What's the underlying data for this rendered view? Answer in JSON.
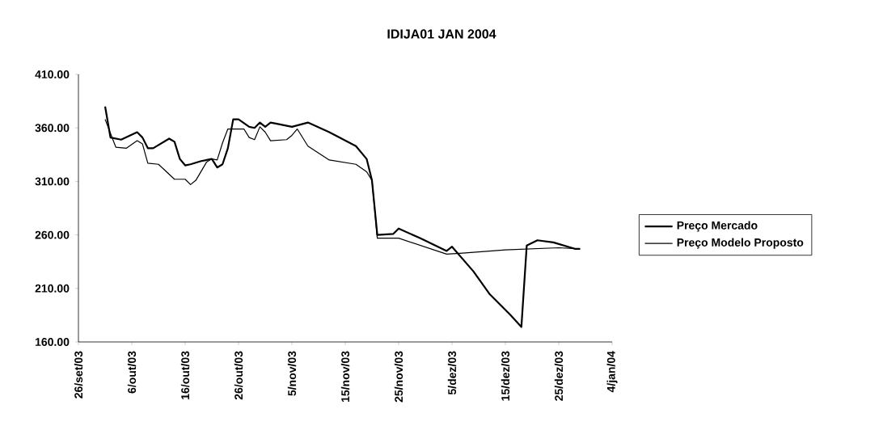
{
  "chart_data": {
    "type": "line",
    "title": "IDIJA01 JAN 2004",
    "xlim": [
      "2003-09-26",
      "2004-01-04"
    ],
    "xticks": [
      {
        "value": "2003-09-26",
        "label": "26/set/03"
      },
      {
        "value": "2003-10-06",
        "label": "6/out/03"
      },
      {
        "value": "2003-10-16",
        "label": "16/out/03"
      },
      {
        "value": "2003-10-26",
        "label": "26/out/03"
      },
      {
        "value": "2003-11-05",
        "label": "5/nov/03"
      },
      {
        "value": "2003-11-15",
        "label": "15/nov/03"
      },
      {
        "value": "2003-11-25",
        "label": "25/nov/03"
      },
      {
        "value": "2003-12-05",
        "label": "5/dez/03"
      },
      {
        "value": "2003-12-15",
        "label": "15/dez/03"
      },
      {
        "value": "2003-12-25",
        "label": "25/dez/03"
      },
      {
        "value": "2004-01-04",
        "label": "4/jan/04"
      }
    ],
    "ylim": [
      160,
      410
    ],
    "yticks": [
      {
        "value": 160,
        "label": "160.00"
      },
      {
        "value": 210,
        "label": "210.00"
      },
      {
        "value": 260,
        "label": "260.00"
      },
      {
        "value": 310,
        "label": "310.00"
      },
      {
        "value": 360,
        "label": "360.00"
      },
      {
        "value": 410,
        "label": "410.00"
      }
    ],
    "legend": "right",
    "grid": false,
    "series": [
      {
        "name": "Preço Mercado",
        "color": "#000000",
        "x": [
          "2003-10-01",
          "2003-10-02",
          "2003-10-04",
          "2003-10-07",
          "2003-10-08",
          "2003-10-09",
          "2003-10-10",
          "2003-10-13",
          "2003-10-14",
          "2003-10-15",
          "2003-10-16",
          "2003-10-17",
          "2003-10-19",
          "2003-10-21",
          "2003-10-22",
          "2003-10-23",
          "2003-10-24",
          "2003-10-25",
          "2003-10-26",
          "2003-10-28",
          "2003-10-29",
          "2003-10-30",
          "2003-10-31",
          "2003-11-01",
          "2003-11-02",
          "2003-11-05",
          "2003-11-08",
          "2003-11-12",
          "2003-11-17",
          "2003-11-19",
          "2003-11-20",
          "2003-11-21",
          "2003-11-24",
          "2003-11-25",
          "2003-11-29",
          "2003-12-04",
          "2003-12-05",
          "2003-12-09",
          "2003-12-12",
          "2003-12-16",
          "2003-12-18",
          "2003-12-19",
          "2003-12-21",
          "2003-12-24",
          "2003-12-28",
          "2003-12-29"
        ],
        "values": [
          380,
          351,
          349,
          356,
          351,
          341,
          341,
          350,
          347,
          331,
          325,
          326,
          329,
          331,
          323,
          326,
          341,
          368,
          368,
          361,
          360,
          365,
          361,
          365,
          364,
          361,
          365,
          356,
          343,
          331,
          311,
          260,
          261,
          266,
          257,
          245,
          249,
          226,
          205,
          185,
          174,
          250,
          255,
          253,
          247,
          247
        ]
      },
      {
        "name": "Preço Modelo Proposto",
        "color": "#000000",
        "x": [
          "2003-10-01",
          "2003-10-03",
          "2003-10-05",
          "2003-10-07",
          "2003-10-08",
          "2003-10-09",
          "2003-10-11",
          "2003-10-14",
          "2003-10-16",
          "2003-10-17",
          "2003-10-18",
          "2003-10-20",
          "2003-10-21",
          "2003-10-22",
          "2003-10-23",
          "2003-10-24",
          "2003-10-27",
          "2003-10-28",
          "2003-10-29",
          "2003-10-30",
          "2003-10-31",
          "2003-11-01",
          "2003-11-04",
          "2003-11-05",
          "2003-11-06",
          "2003-11-08",
          "2003-11-12",
          "2003-11-17",
          "2003-11-19",
          "2003-11-20",
          "2003-11-21",
          "2003-11-25",
          "2003-12-04",
          "2003-12-07",
          "2003-12-15",
          "2003-12-25",
          "2003-12-29"
        ],
        "values": [
          368,
          342,
          341,
          348,
          345,
          327,
          326,
          312,
          312,
          307,
          311,
          328,
          331,
          330,
          346,
          359,
          359,
          351,
          349,
          361,
          356,
          348,
          349,
          353,
          359,
          343,
          330,
          326,
          319,
          311,
          257,
          257,
          242,
          243,
          246,
          248,
          247
        ]
      }
    ]
  }
}
